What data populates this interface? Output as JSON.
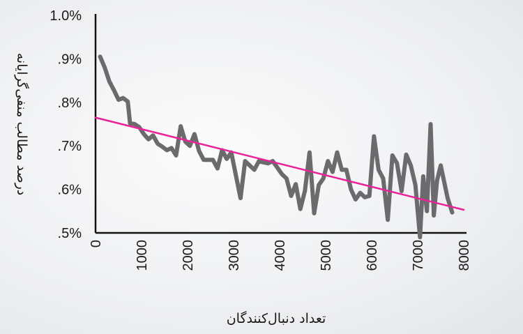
{
  "chart_data": {
    "type": "line",
    "xlabel": "تعداد دنبال‌کنندگان",
    "ylabel": "درصد مطالب منفی‌گرایانه",
    "xlim": [
      0,
      8000
    ],
    "ylim": [
      0.5,
      1.0
    ],
    "x_ticks": [
      0,
      1000,
      2000,
      3000,
      4000,
      5000,
      6000,
      7000,
      8000
    ],
    "x_tick_labels": [
      "0",
      "1000",
      "2000",
      "3000",
      "4000",
      "5000",
      "6000",
      "7000",
      "8000"
    ],
    "y_ticks": [
      0.5,
      0.6,
      0.7,
      0.8,
      0.9,
      1.0
    ],
    "y_tick_labels": [
      ".5%",
      ".6%",
      ".7%",
      ".8%",
      ".9%",
      "1.0%"
    ],
    "grid": false,
    "series": [
      {
        "color": "#6b6b6d",
        "x": [
          100,
          200,
          300,
          400,
          500,
          600,
          700,
          750,
          850,
          950,
          1050,
          1150,
          1250,
          1350,
          1450,
          1550,
          1650,
          1750,
          1850,
          1950,
          2050,
          2150,
          2250,
          2350,
          2450,
          2550,
          2650,
          2750,
          2850,
          2950,
          3050,
          3150,
          3250,
          3350,
          3450,
          3550,
          3650,
          3750,
          3850,
          3950,
          4050,
          4150,
          4250,
          4350,
          4450,
          4550,
          4650,
          4750,
          4850,
          4950,
          5050,
          5150,
          5250,
          5350,
          5450,
          5550,
          5650,
          5750,
          5850,
          5950,
          6050,
          6150,
          6250,
          6350,
          6450,
          6550,
          6650,
          6750,
          6850,
          6950,
          7050,
          7120,
          7200,
          7280,
          7350,
          7420,
          7500,
          7570,
          7650,
          7750
        ],
        "y": [
          0.905,
          0.88,
          0.848,
          0.828,
          0.806,
          0.81,
          0.802,
          0.752,
          0.75,
          0.743,
          0.727,
          0.715,
          0.724,
          0.705,
          0.698,
          0.69,
          0.695,
          0.678,
          0.745,
          0.71,
          0.7,
          0.727,
          0.688,
          0.668,
          0.668,
          0.668,
          0.648,
          0.69,
          0.67,
          0.685,
          0.632,
          0.58,
          0.665,
          0.655,
          0.645,
          0.665,
          0.662,
          0.66,
          0.665,
          0.65,
          0.635,
          0.625,
          0.585,
          0.612,
          0.555,
          0.597,
          0.685,
          0.545,
          0.61,
          0.625,
          0.665,
          0.64,
          0.685,
          0.645,
          0.645,
          0.6,
          0.577,
          0.592,
          0.582,
          0.585,
          0.722,
          0.645,
          0.625,
          0.53,
          0.678,
          0.66,
          0.596,
          0.68,
          0.655,
          0.61,
          0.49,
          0.63,
          0.55,
          0.75,
          0.54,
          0.62,
          0.655,
          0.62,
          0.58,
          0.547
        ]
      },
      {
        "color": "#e8239a",
        "x": [
          0,
          8000
        ],
        "y": [
          0.765,
          0.553
        ]
      }
    ]
  }
}
